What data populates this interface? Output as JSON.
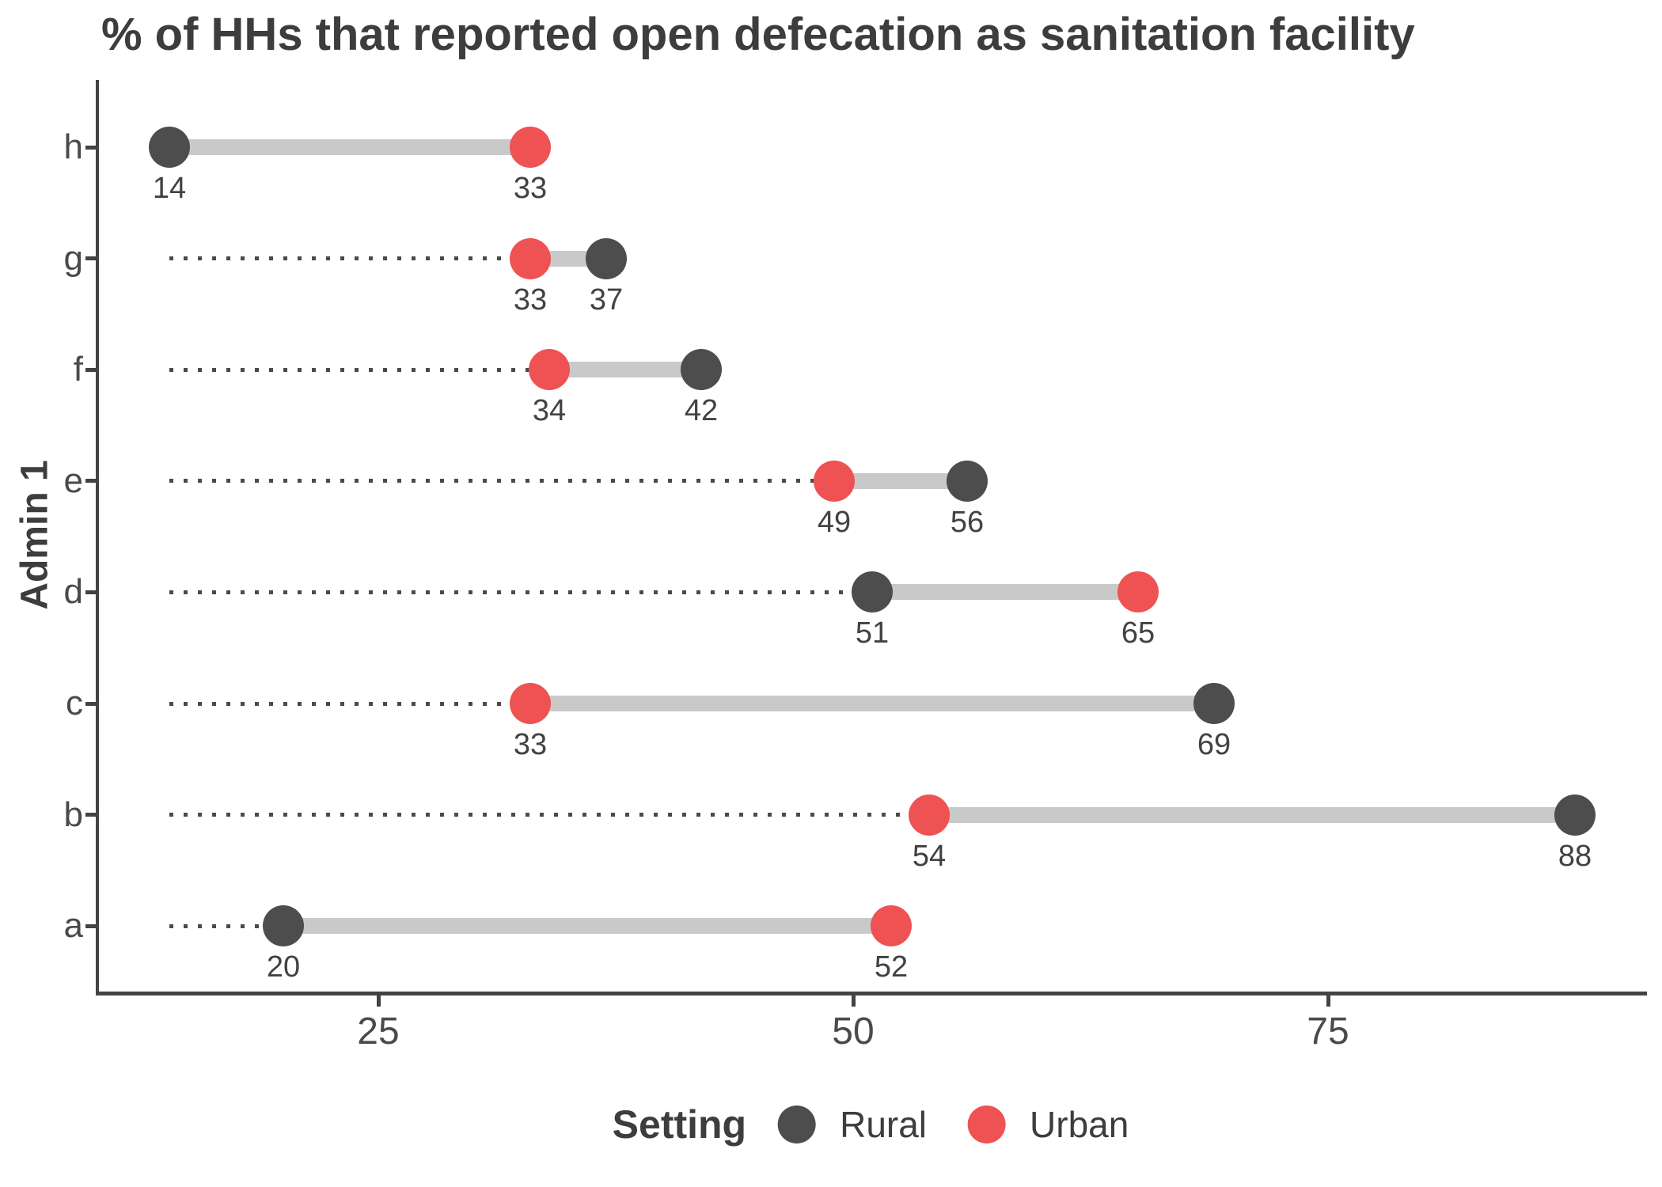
{
  "title": "% of HHs that reported open defecation as sanitation facility",
  "colors": {
    "rural": "#4d4d4d",
    "urban": "#ee5253",
    "connector": "#c9c9c9",
    "leader_line": "#4a4a4a",
    "axis": "#434343",
    "text": "#3d3d3d"
  },
  "legend": {
    "title": "Setting",
    "items": [
      {
        "label": "Rural",
        "color": "#4d4d4d"
      },
      {
        "label": "Urban",
        "color": "#ee5253"
      }
    ]
  },
  "chart_data": {
    "type": "dumbbell",
    "orientation": "horizontal",
    "title": "% of HHs that reported open defecation as sanitation facility",
    "xlabel": "",
    "ylabel": "Admin 1",
    "x_ticks": [
      25,
      50,
      75
    ],
    "x_domain": [
      10.3,
      91.7
    ],
    "grid": false,
    "legend_position": "bottom",
    "categories_top_to_bottom": [
      "h",
      "g",
      "f",
      "e",
      "d",
      "c",
      "b",
      "a"
    ],
    "series": [
      {
        "name": "Rural",
        "color": "#4d4d4d",
        "values": {
          "h": 14,
          "g": 37,
          "f": 42,
          "e": 56,
          "d": 51,
          "c": 69,
          "b": 88,
          "a": 20
        }
      },
      {
        "name": "Urban",
        "color": "#ee5253",
        "values": {
          "h": 33,
          "g": 33,
          "f": 34,
          "e": 49,
          "d": 65,
          "c": 33,
          "b": 54,
          "a": 52
        }
      }
    ],
    "rows": [
      {
        "label": "h",
        "rural": 14,
        "urban": 33
      },
      {
        "label": "g",
        "rural": 37,
        "urban": 33
      },
      {
        "label": "f",
        "rural": 42,
        "urban": 34
      },
      {
        "label": "e",
        "rural": 56,
        "urban": 49
      },
      {
        "label": "d",
        "rural": 51,
        "urban": 65
      },
      {
        "label": "c",
        "rural": 69,
        "urban": 33
      },
      {
        "label": "b",
        "rural": 88,
        "urban": 54
      },
      {
        "label": "a",
        "rural": 20,
        "urban": 52
      }
    ],
    "leader_line_start_value": 14
  }
}
